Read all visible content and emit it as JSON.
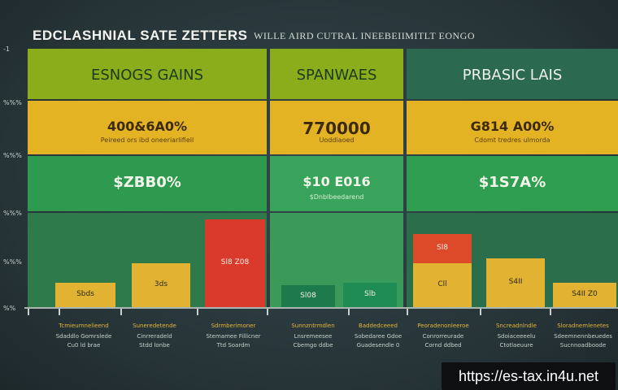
{
  "title": "EDCLASHNIAL SATE ZETTERS",
  "subtitle": "WILLE AIRD CUTRAL INEEBEIIMITLT EONGO",
  "axis_ticks": [
    "-1",
    "%%%",
    "%%%",
    "%%%",
    "%%%",
    "%%"
  ],
  "columns": [
    {
      "title": "ESNOGS GAINS",
      "mid": "400&6A0%",
      "mid_note": "Peireed ors ibd oneeriarlifiell",
      "low": "$ZBB0%",
      "low_note": ""
    },
    {
      "title": "SPANWAES",
      "mid": "770000",
      "mid_note": "Uoddiaoed",
      "low": "$10 E016",
      "low_note": "$Dnblbeedarend"
    },
    {
      "title": "PRBASIC LAIS",
      "mid": "G814 A00%",
      "mid_note": "Cdomt tredres ulmorda",
      "low": "$1S7A%",
      "low_note": ""
    }
  ],
  "chart_data": {
    "type": "bar",
    "title": "EDCLASHNIAL SATE ZETTERS",
    "bars": [
      {
        "label": "Sbds",
        "value": 10,
        "color": "#e2b233"
      },
      {
        "label": "3ds",
        "value": 18,
        "color": "#e2b233"
      },
      {
        "label": "Sl8 Z08",
        "value": 36,
        "color": "#d93a2c"
      },
      {
        "label": "Sl08",
        "value": 9,
        "color": "#1c7a4b"
      },
      {
        "label": "Slb",
        "value": 10,
        "color": "#1f8c55"
      },
      {
        "label": "Cll",
        "value": 18,
        "color": "#e2b233"
      },
      {
        "label": "Sl8",
        "value": 12,
        "color": "#dc4a2a"
      },
      {
        "label": "S4II",
        "value": 20,
        "color": "#e2b233"
      },
      {
        "label": "S4II Z0",
        "value": 10,
        "color": "#e2b233"
      }
    ],
    "x_labels": [
      {
        "l1": "Tcmieumnelieend",
        "l2": "Sdaddlo Gomrslede",
        "l3": "Cu0 ld brae"
      },
      {
        "l1": "Suneredetende",
        "l2": "Cinrreradeld",
        "l3": "Stdd lonbe"
      },
      {
        "l1": "Sdrmberimoner",
        "l2": "Stemamee Fillicner",
        "l3": "Ttd Soardm"
      },
      {
        "l1": "Sunnzntrmdlen",
        "l2": "Lnsremeesee",
        "l3": "Cbemgo ddbe"
      },
      {
        "l1": "Baddedceeed",
        "l2": "Sobedaree Gdoe",
        "l3": "Guadesendle 0"
      },
      {
        "l1": "Peoradenonleeroe",
        "l2": "Conrorreurade",
        "l3": "Cornd ddbed"
      },
      {
        "l1": "Sncreadnlndle",
        "l2": "Sdoiaceeeelu",
        "l3": "Ctotlaeuure"
      },
      {
        "l1": "Sloradnemlenetes",
        "l2": "Sdeemnennbeuedes",
        "l3": "Sucnnoadboode"
      }
    ]
  },
  "colors": {
    "green_light": "#8fb21a",
    "green_dark": "#2e7d4b",
    "yellow": "#e6b422",
    "band_green": "#2f9e50",
    "teal": "#2f6c54"
  },
  "watermark": "https://es-tax.in4u.net"
}
